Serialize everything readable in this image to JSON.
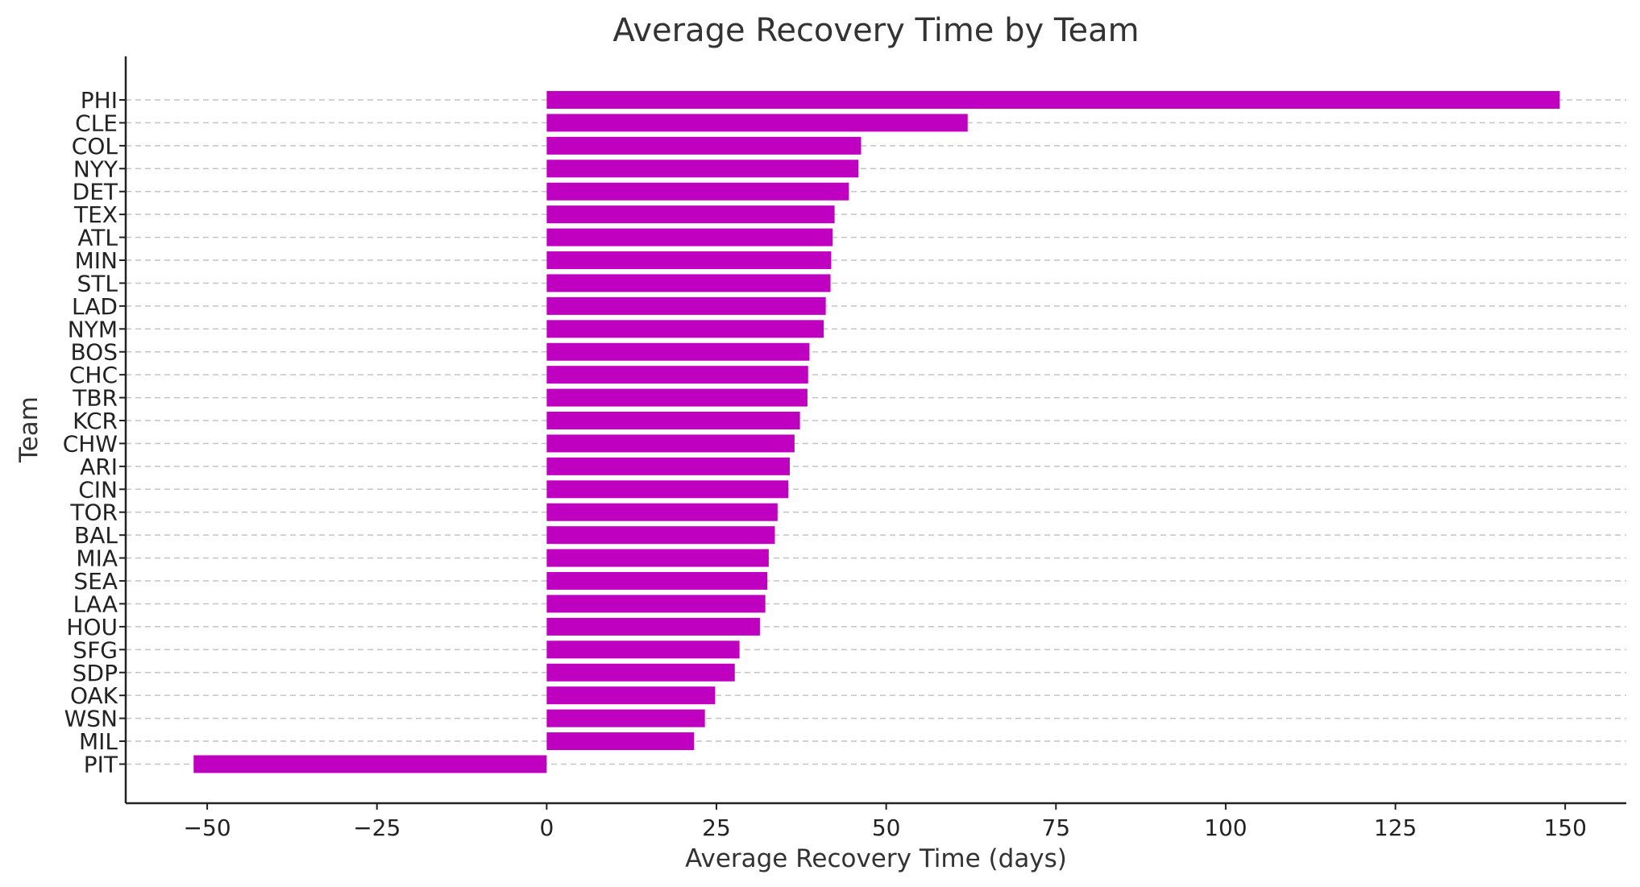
{
  "chart_data": {
    "type": "bar",
    "orientation": "horizontal",
    "title": "Average Recovery Time by Team",
    "xlabel": "Average Recovery Time (days)",
    "ylabel": "Team",
    "xlim": [
      -62,
      159
    ],
    "xticks": [
      -50,
      -25,
      0,
      25,
      50,
      75,
      100,
      125,
      150
    ],
    "xtick_labels": [
      "−50",
      "−25",
      "0",
      "25",
      "50",
      "75",
      "100",
      "125",
      "150"
    ],
    "grid": "horizontal dashed",
    "bar_color": "#c000c0",
    "categories": [
      "PHI",
      "CLE",
      "COL",
      "NYY",
      "DET",
      "TEX",
      "ATL",
      "MIN",
      "STL",
      "LAD",
      "NYM",
      "BOS",
      "CHC",
      "TBR",
      "KCR",
      "CHW",
      "ARI",
      "CIN",
      "TOR",
      "BAL",
      "MIA",
      "SEA",
      "LAA",
      "HOU",
      "SFG",
      "SDP",
      "OAK",
      "WSN",
      "MIL",
      "PIT"
    ],
    "values": [
      149.2,
      62.0,
      46.3,
      45.9,
      44.5,
      42.4,
      42.1,
      41.9,
      41.8,
      41.1,
      40.8,
      38.7,
      38.5,
      38.4,
      37.3,
      36.5,
      35.8,
      35.6,
      34.0,
      33.6,
      32.7,
      32.5,
      32.2,
      31.4,
      28.4,
      27.7,
      24.8,
      23.3,
      21.7,
      -52.0
    ]
  }
}
